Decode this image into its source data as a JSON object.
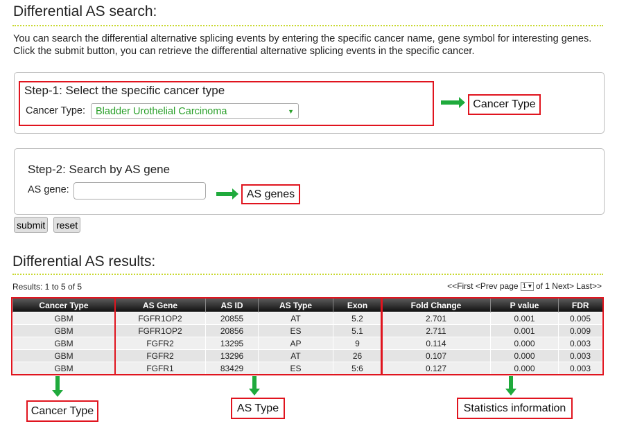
{
  "header": {
    "title": "Differential AS search:",
    "intro": "You can search the differential alternative splicing events by entering the specific cancer name, gene symbol for interesting genes. Click the submit button, you can retrieve the differential alternative splicing events in the specific cancer."
  },
  "step1": {
    "title": "Step-1: Select the specific cancer type",
    "label": "Cancer Type:",
    "selected": "Bladder Urothelial Carcinoma"
  },
  "step2": {
    "title": "Step-2: Search by AS gene",
    "label": "AS gene:"
  },
  "buttons": [
    "submit",
    "reset"
  ],
  "results": {
    "title": "Differential AS results:",
    "count": "Results: 1 to 5 of 5",
    "pager_prev": "<<First <Prev page",
    "pager_page": "1",
    "pager_next": "of 1 Next> Last>>"
  },
  "table": {
    "columns": [
      "Cancer Type",
      "AS Gene",
      "AS ID",
      "AS Type",
      "Exon",
      "Fold Change",
      "P value",
      "FDR"
    ],
    "rows": [
      [
        "GBM",
        "FGFR1OP2",
        "20855",
        "AT",
        "5.2",
        "2.701",
        "0.001",
        "0.005"
      ],
      [
        "GBM",
        "FGFR1OP2",
        "20856",
        "ES",
        "5.1",
        "2.711",
        "0.001",
        "0.009"
      ],
      [
        "GBM",
        "FGFR2",
        "13295",
        "AP",
        "9",
        "0.114",
        "0.000",
        "0.003"
      ],
      [
        "GBM",
        "FGFR2",
        "13296",
        "AT",
        "26",
        "0.107",
        "0.000",
        "0.003"
      ],
      [
        "GBM",
        "FGFR1",
        "83429",
        "ES",
        "5:6",
        "0.127",
        "0.000",
        "0.003"
      ]
    ]
  },
  "annotations": [
    "Cancer Type",
    "AS genes",
    "Cancer Type",
    "AS Type",
    "Statistics information"
  ]
}
